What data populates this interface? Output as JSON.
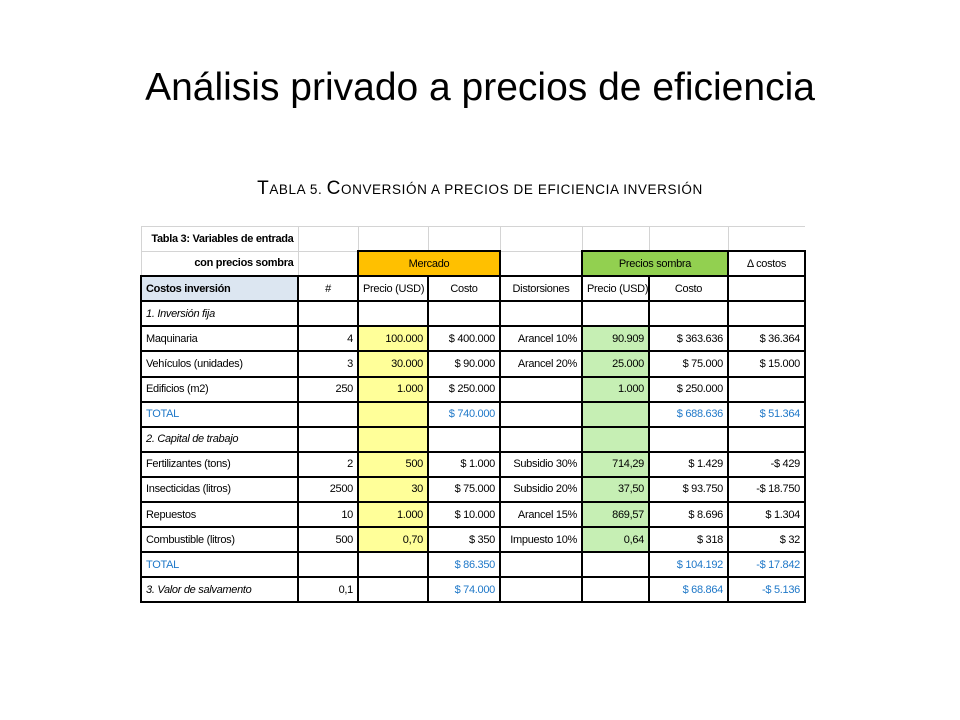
{
  "slide": {
    "title": "Análisis privado a precios de eficiencia",
    "subtitle_T": "T",
    "subtitle_abla5": "ABLA 5. ",
    "subtitle_C": "C",
    "subtitle_rest": "ONVERSIÓN A PRECIOS DE EFICIENCIA INVERSIÓN"
  },
  "table": {
    "header1": "Tabla 3: Variables de entrada",
    "header2": "con precios sombra",
    "group_market": "Mercado",
    "group_shadow": "Precios sombra",
    "group_delta": "Δ costos",
    "columns": [
      "Costos inversión",
      "#",
      "Precio (USD)",
      "Costo",
      "Distorsiones",
      "Precio (USD)",
      "Costo"
    ],
    "section1": "1. Inversión fija",
    "rows1": [
      {
        "name": "Maquinaria",
        "qty": "4",
        "price": "100.000",
        "cost": "$ 400.000",
        "dist": "Arancel 10%",
        "sprice": "90.909",
        "scost": "$ 363.636",
        "delta": "$ 36.364"
      },
      {
        "name": "Vehículos (unidades)",
        "qty": "3",
        "price": "30.000",
        "cost": "$ 90.000",
        "dist": "Arancel 20%",
        "sprice": "25.000",
        "scost": "$ 75.000",
        "delta": "$ 15.000"
      },
      {
        "name": "Edificios (m2)",
        "qty": "250",
        "price": "1.000",
        "cost": "$ 250.000",
        "dist": "",
        "sprice": "1.000",
        "scost": "$ 250.000",
        "delta": ""
      }
    ],
    "total1": {
      "label": "TOTAL",
      "cost": "$ 740.000",
      "scost": "$ 688.636",
      "delta": "$ 51.364"
    },
    "section2": "2. Capital de trabajo",
    "rows2": [
      {
        "name": "Fertilizantes (tons)",
        "qty": "2",
        "price": "500",
        "cost": "$ 1.000",
        "dist": "Subsidio 30%",
        "sprice": "714,29",
        "scost": "$ 1.429",
        "delta": "-$ 429"
      },
      {
        "name": "Insecticidas (litros)",
        "qty": "2500",
        "price": "30",
        "cost": "$ 75.000",
        "dist": "Subsidio 20%",
        "sprice": "37,50",
        "scost": "$ 93.750",
        "delta": "-$ 18.750"
      },
      {
        "name": "Repuestos",
        "qty": "10",
        "price": "1.000",
        "cost": "$ 10.000",
        "dist": "Arancel 15%",
        "sprice": "869,57",
        "scost": "$ 8.696",
        "delta": "$ 1.304"
      },
      {
        "name": "Combustible (litros)",
        "qty": "500",
        "price": "0,70",
        "cost": "$ 350",
        "dist": "Impuesto 10%",
        "sprice": "0,64",
        "scost": "$ 318",
        "delta": "$ 32"
      }
    ],
    "total2": {
      "label": "TOTAL",
      "cost": "$ 86.350",
      "scost": "$ 104.192",
      "delta": "-$ 17.842"
    },
    "salvage": {
      "label": "3. Valor de salvamento",
      "qty": "0,1",
      "cost": "$ 74.000",
      "scost": "$ 68.864",
      "delta": "-$ 5.136"
    }
  }
}
